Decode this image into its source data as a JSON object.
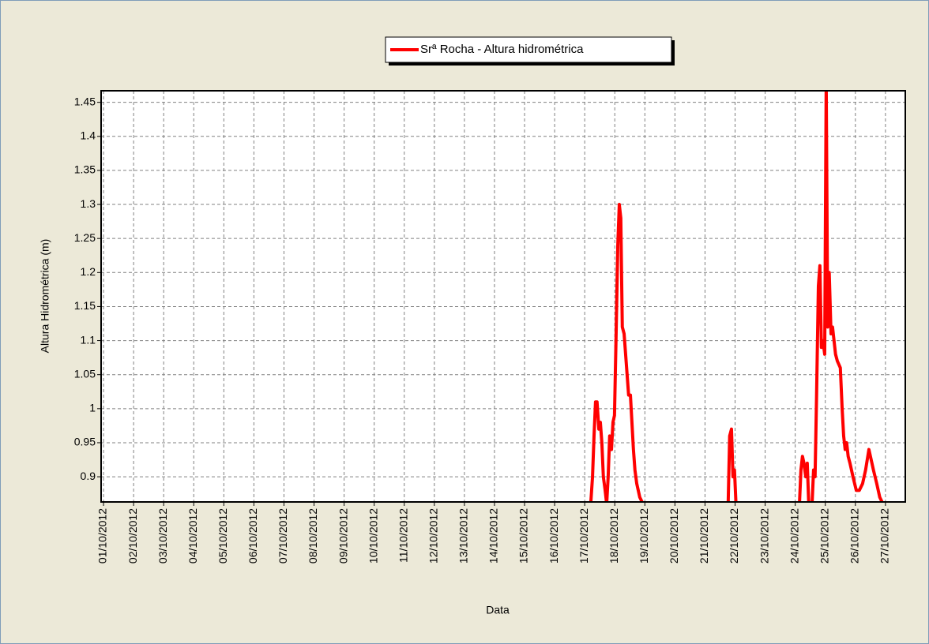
{
  "chart_data": {
    "type": "line",
    "x_label": "Data",
    "y_label": "Altura Hidrométrica (m)",
    "legend": "top",
    "grid": true,
    "xlim": [
      0.92,
      27.66
    ],
    "ylim": [
      0.863,
      1.467
    ],
    "xticks": [
      {
        "value": 1,
        "label": "01/10/2012"
      },
      {
        "value": 2,
        "label": "02/10/2012"
      },
      {
        "value": 3,
        "label": "03/10/2012"
      },
      {
        "value": 4,
        "label": "04/10/2012"
      },
      {
        "value": 5,
        "label": "05/10/2012"
      },
      {
        "value": 6,
        "label": "06/10/2012"
      },
      {
        "value": 7,
        "label": "07/10/2012"
      },
      {
        "value": 8,
        "label": "08/10/2012"
      },
      {
        "value": 9,
        "label": "09/10/2012"
      },
      {
        "value": 10,
        "label": "10/10/2012"
      },
      {
        "value": 11,
        "label": "11/10/2012"
      },
      {
        "value": 12,
        "label": "12/10/2012"
      },
      {
        "value": 13,
        "label": "13/10/2012"
      },
      {
        "value": 14,
        "label": "14/10/2012"
      },
      {
        "value": 15,
        "label": "15/10/2012"
      },
      {
        "value": 16,
        "label": "16/10/2012"
      },
      {
        "value": 17,
        "label": "17/10/2012"
      },
      {
        "value": 18,
        "label": "18/10/2012"
      },
      {
        "value": 19,
        "label": "19/10/2012"
      },
      {
        "value": 20,
        "label": "20/10/2012"
      },
      {
        "value": 21,
        "label": "21/10/2012"
      },
      {
        "value": 22,
        "label": "22/10/2012"
      },
      {
        "value": 23,
        "label": "23/10/2012"
      },
      {
        "value": 24,
        "label": "24/10/2012"
      },
      {
        "value": 25,
        "label": "25/10/2012"
      },
      {
        "value": 26,
        "label": "26/10/2012"
      },
      {
        "value": 27,
        "label": "27/10/2012"
      }
    ],
    "yticks": [
      0.9,
      0.95,
      1,
      1.05,
      1.1,
      1.15,
      1.2,
      1.25,
      1.3,
      1.35,
      1.4,
      1.45
    ],
    "x": [
      17.2,
      17.26,
      17.31,
      17.36,
      17.41,
      17.47,
      17.52,
      17.57,
      17.62,
      17.68,
      17.73,
      17.78,
      17.83,
      17.89,
      17.94,
      17.99,
      18.04,
      18.1,
      18.15,
      18.2,
      18.25,
      18.31,
      18.36,
      18.41,
      18.46,
      18.52,
      18.57,
      18.62,
      18.67,
      18.73,
      18.78,
      18.83,
      18.94,
      21.77,
      21.82,
      21.88,
      21.93,
      21.98,
      22.03,
      24.14,
      24.19,
      24.24,
      24.29,
      24.35,
      24.4,
      24.45,
      24.56,
      24.61,
      24.66,
      24.71,
      24.77,
      24.82,
      24.87,
      24.92,
      24.98,
      25.03,
      25.08,
      25.13,
      25.19,
      25.24,
      25.29,
      25.34,
      25.4,
      25.5,
      25.56,
      25.61,
      25.66,
      25.71,
      25.76,
      25.82,
      25.92,
      26.03,
      26.13,
      26.24,
      26.34,
      26.45,
      26.5,
      26.6,
      26.71,
      26.81,
      26.92
    ],
    "series": [
      {
        "name": "Srª Rocha - Altura hidrométrica",
        "color": "#ff0000",
        "values": [
          0.86,
          0.9,
          0.96,
          1.01,
          1.01,
          0.97,
          0.98,
          0.95,
          0.9,
          0.88,
          0.86,
          0.9,
          0.96,
          0.94,
          0.98,
          0.99,
          1.1,
          1.24,
          1.3,
          1.28,
          1.12,
          1.11,
          1.08,
          1.05,
          1.02,
          1.02,
          0.98,
          0.94,
          0.91,
          0.89,
          0.88,
          0.87,
          0.86,
          0.86,
          0.96,
          0.97,
          0.9,
          0.91,
          0.86,
          0.86,
          0.91,
          0.93,
          0.92,
          0.9,
          0.92,
          0.86,
          0.86,
          0.91,
          0.9,
          1.02,
          1.18,
          1.21,
          1.09,
          1.1,
          1.08,
          1.48,
          1.12,
          1.2,
          1.11,
          1.12,
          1.1,
          1.08,
          1.07,
          1.06,
          1.0,
          0.96,
          0.94,
          0.95,
          0.93,
          0.92,
          0.9,
          0.88,
          0.88,
          0.89,
          0.91,
          0.94,
          0.93,
          0.91,
          0.89,
          0.87,
          0.86
        ]
      }
    ]
  }
}
